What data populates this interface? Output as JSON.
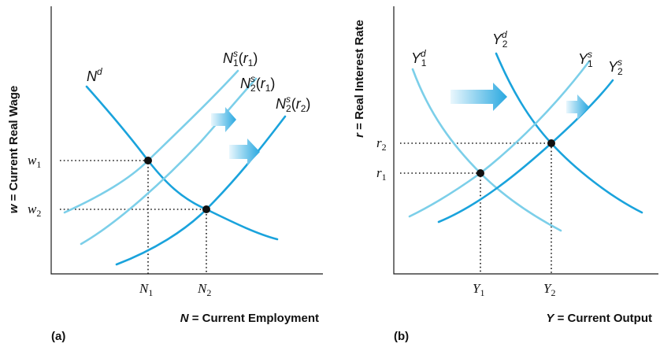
{
  "panel_a": {
    "tag": "(a)",
    "y_axis": {
      "var": "w",
      "rest": " = Current Real Wage"
    },
    "x_axis": {
      "var": "N",
      "rest": " = Current Employment"
    },
    "ticks": {
      "w1": {
        "v": "w",
        "s": "1"
      },
      "w2": {
        "v": "w",
        "s": "2"
      },
      "N1": {
        "v": "N",
        "s": "1"
      },
      "N2": {
        "v": "N",
        "s": "2"
      }
    },
    "curves": {
      "Nd": {
        "base": "N",
        "sup": "d",
        "tail": ""
      },
      "Ns1": {
        "base": "N",
        "sup": "s",
        "sub": "1",
        "paren": "(",
        "arg": "r",
        "argsub": "1",
        "close": ")"
      },
      "Ns2r1": {
        "base": "N",
        "sup": "s",
        "sub": "2",
        "paren": "(",
        "arg": "r",
        "argsub": "1",
        "close": ")"
      },
      "Ns2r2": {
        "base": "N",
        "sup": "s",
        "sub": "2",
        "paren": "(",
        "arg": "r",
        "argsub": "2",
        "close": ")"
      }
    }
  },
  "panel_b": {
    "tag": "(b)",
    "y_axis": {
      "var": "r",
      "rest": " = Real Interest Rate"
    },
    "x_axis": {
      "var": "Y",
      "rest": " = Current Output"
    },
    "ticks": {
      "r1": {
        "v": "r",
        "s": "1"
      },
      "r2": {
        "v": "r",
        "s": "2"
      },
      "Y1": {
        "v": "Y",
        "s": "1"
      },
      "Y2": {
        "v": "Y",
        "s": "2"
      }
    },
    "curves": {
      "Yd1": {
        "base": "Y",
        "sup": "d",
        "sub": "1"
      },
      "Yd2": {
        "base": "Y",
        "sup": "d",
        "sub": "2"
      },
      "Ys1": {
        "base": "Y",
        "sup": "s",
        "sub": "1"
      },
      "Ys2": {
        "base": "Y",
        "sup": "s",
        "sub": "2"
      }
    }
  },
  "colors": {
    "light_curve": "#7ccfe9",
    "dark_curve": "#1aa3dc",
    "arrow_start": "#eaf7fd",
    "arrow_end": "#29a8e0"
  }
}
